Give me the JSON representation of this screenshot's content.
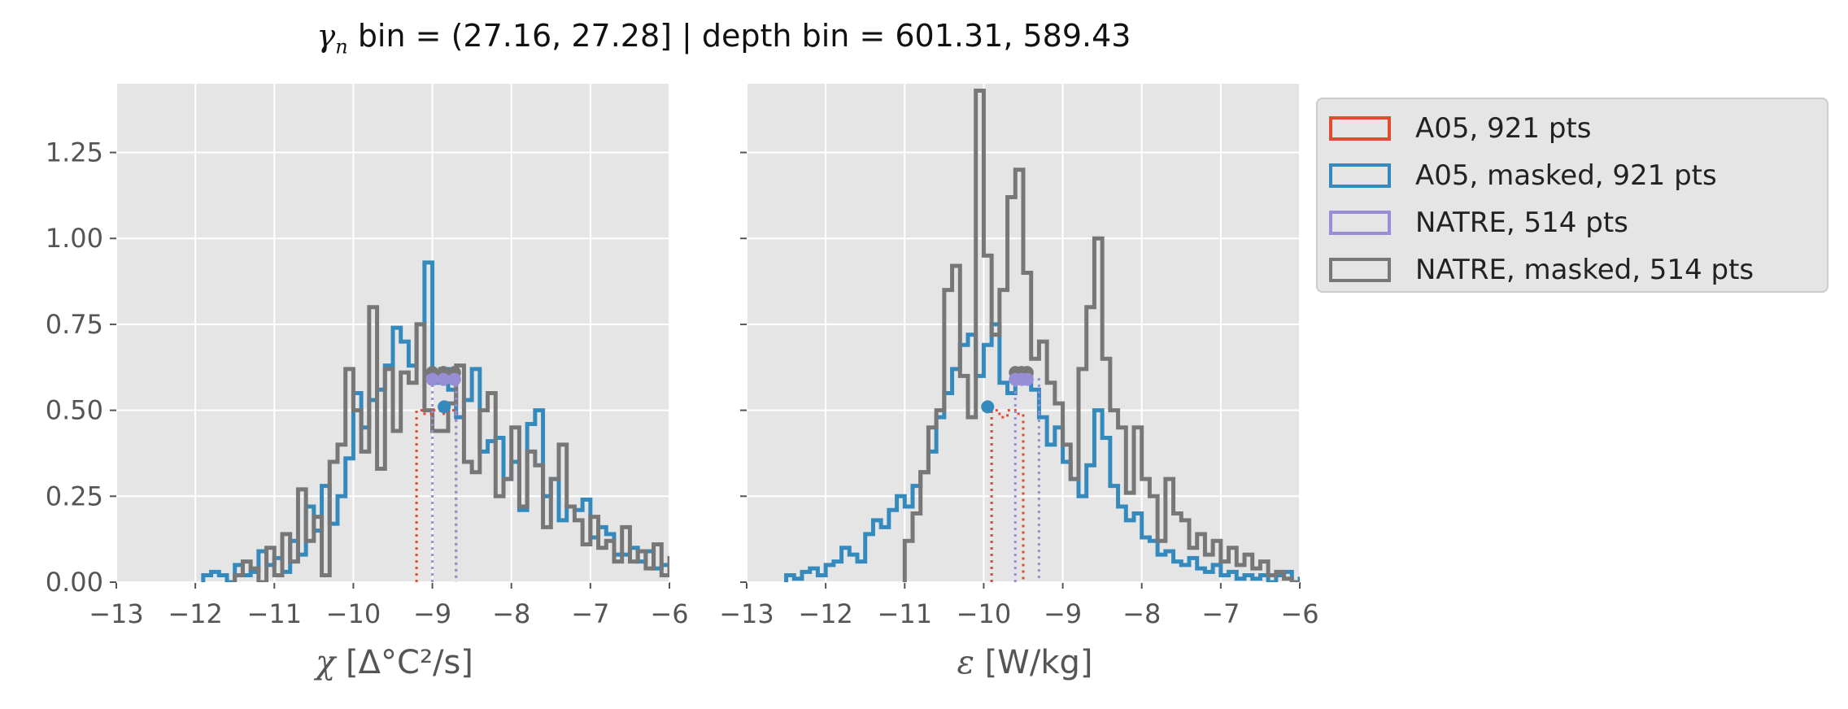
{
  "title": {
    "gamma_symbol": "γ",
    "gamma_subscript": "n",
    "text": " bin = (27.16, 27.28] | depth bin = 601.31, 589.43"
  },
  "legend": [
    {
      "label": "A05, 921 pts",
      "color": "#E24A33"
    },
    {
      "label": "A05, masked,  921 pts",
      "color": "#348ABD"
    },
    {
      "label": "NATRE, 514 pts",
      "color": "#988ED5"
    },
    {
      "label": "NATRE, masked,  514 pts",
      "color": "#777777"
    }
  ],
  "chart_data": [
    {
      "type": "histogram-step",
      "xlabel_symbol": "χ",
      "xlabel_unit": " [Δ°C²/s]",
      "xlim": [
        -13,
        -6
      ],
      "ylim": [
        0,
        1.45
      ],
      "xticks": [
        "−13",
        "−12",
        "−11",
        "−10",
        "−9",
        "−8",
        "−7",
        "−6"
      ],
      "yticks": [
        "0.00",
        "0.25",
        "0.50",
        "0.75",
        "1.00",
        "1.25"
      ],
      "ytick_values": [
        0,
        0.25,
        0.5,
        0.75,
        1.0,
        1.25
      ],
      "grid": true,
      "series": [
        {
          "name": "A05, masked,  921 pts",
          "color": "#348ABD",
          "bin_start": -11.9,
          "bin_width": 0.1,
          "values": [
            0.02,
            0.03,
            0.02,
            0.0,
            0.05,
            0.02,
            0.03,
            0.09,
            0.05,
            0.07,
            0.03,
            0.12,
            0.08,
            0.22,
            0.15,
            0.28,
            0.17,
            0.25,
            0.36,
            0.55,
            0.45,
            0.53,
            0.56,
            0.63,
            0.74,
            0.7,
            0.63,
            0.75,
            0.93,
            0.58,
            0.62,
            0.56,
            0.48,
            0.53,
            0.62,
            0.38,
            0.41,
            0.42,
            0.3,
            0.35,
            0.21,
            0.46,
            0.5,
            0.25,
            0.3,
            0.18,
            0.22,
            0.21,
            0.24,
            0.13,
            0.16,
            0.14,
            0.08,
            0.08,
            0.1,
            0.06,
            0.09,
            0.04,
            0.05,
            0.06,
            0.03,
            0.04,
            0.02,
            0.03,
            0.02,
            0.01,
            0.03,
            0.02,
            0.01,
            0.0,
            0.01,
            0.03,
            0.0
          ]
        },
        {
          "name": "NATRE, masked,  514 pts",
          "color": "#777777",
          "bin_start": -11.5,
          "bin_width": 0.1,
          "values": [
            0.02,
            0.06,
            0.04,
            0.0,
            0.1,
            0.02,
            0.14,
            0.06,
            0.27,
            0.12,
            0.19,
            0.02,
            0.35,
            0.4,
            0.62,
            0.5,
            0.38,
            0.8,
            0.33,
            0.62,
            0.44,
            0.61,
            0.58,
            0.75,
            0.5,
            0.44,
            0.44,
            0.52,
            0.63,
            0.35,
            0.32,
            0.5,
            0.55,
            0.25,
            0.3,
            0.45,
            0.22,
            0.38,
            0.34,
            0.16,
            0.3,
            0.4,
            0.22,
            0.18,
            0.11,
            0.19,
            0.1,
            0.12,
            0.06,
            0.16,
            0.06,
            0.09,
            0.04,
            0.11,
            0.02,
            0.07,
            0.02,
            0.02,
            0.08,
            0.04,
            0.05,
            0.03,
            0.02,
            0.04,
            0.01,
            0.0
          ]
        },
        {
          "name": "A05, 921 pts",
          "color": "#E24A33",
          "bin_start": -9.2,
          "bin_width": 0.1,
          "dotted": true,
          "values": [
            0.5,
            0.49,
            0.5,
            0.49,
            0.5
          ]
        },
        {
          "name": "NATRE, 514 pts",
          "color": "#988ED5",
          "bin_start": -9.0,
          "bin_width": 0.1,
          "dotted": true,
          "values": [
            0.59,
            0.59,
            0.59
          ]
        }
      ],
      "markers": [
        {
          "color": "#777777",
          "x": [
            -9.0,
            -8.86,
            -8.72
          ],
          "y": [
            0.61,
            0.61,
            0.61
          ]
        },
        {
          "color": "#988ED5",
          "x": [
            -9.0,
            -8.86,
            -8.72
          ],
          "y": [
            0.59,
            0.59,
            0.59
          ]
        },
        {
          "color": "#348ABD",
          "x": [
            -8.85
          ],
          "y": [
            0.51
          ]
        }
      ]
    },
    {
      "type": "histogram-step",
      "xlabel_symbol": "ε",
      "xlabel_unit": " [W/kg]",
      "xlim": [
        -13,
        -6
      ],
      "ylim": [
        0,
        1.45
      ],
      "xticks": [
        "−13",
        "−12",
        "−11",
        "−10",
        "−9",
        "−8",
        "−7",
        "−6"
      ],
      "yticks": [
        "",
        "",
        "",
        "",
        "",
        ""
      ],
      "ytick_values": [
        0,
        0.25,
        0.5,
        0.75,
        1.0,
        1.25
      ],
      "grid": true,
      "series": [
        {
          "name": "A05, masked,  921 pts",
          "color": "#348ABD",
          "bin_start": -12.5,
          "bin_width": 0.1,
          "values": [
            0.02,
            0.01,
            0.03,
            0.04,
            0.02,
            0.05,
            0.06,
            0.1,
            0.08,
            0.06,
            0.14,
            0.18,
            0.16,
            0.21,
            0.25,
            0.22,
            0.28,
            0.32,
            0.38,
            0.48,
            0.55,
            0.62,
            0.69,
            0.72,
            0.6,
            0.69,
            0.75,
            0.58,
            0.55,
            0.62,
            0.6,
            0.56,
            0.48,
            0.4,
            0.45,
            0.35,
            0.3,
            0.25,
            0.34,
            0.5,
            0.42,
            0.28,
            0.22,
            0.18,
            0.2,
            0.13,
            0.12,
            0.08,
            0.09,
            0.06,
            0.05,
            0.07,
            0.04,
            0.03,
            0.05,
            0.02,
            0.03,
            0.01,
            0.02,
            0.01,
            0.02,
            0.0,
            0.02,
            0.03,
            0.0,
            0.01,
            0.02,
            0.01
          ]
        },
        {
          "name": "NATRE, masked,  514 pts",
          "color": "#777777",
          "bin_start": -11.0,
          "bin_width": 0.1,
          "values": [
            0.12,
            0.2,
            0.32,
            0.45,
            0.5,
            0.85,
            0.92,
            0.6,
            0.48,
            1.43,
            0.95,
            0.72,
            0.85,
            1.12,
            1.2,
            0.9,
            0.65,
            0.7,
            0.58,
            0.52,
            0.4,
            0.3,
            0.62,
            0.8,
            1.0,
            0.65,
            0.5,
            0.45,
            0.26,
            0.45,
            0.3,
            0.25,
            0.12,
            0.3,
            0.2,
            0.18,
            0.1,
            0.14,
            0.08,
            0.12,
            0.06,
            0.1,
            0.05,
            0.08,
            0.04,
            0.06,
            0.02,
            0.03,
            0.01,
            0.0
          ]
        },
        {
          "name": "A05, 921 pts",
          "color": "#E24A33",
          "bin_start": -9.9,
          "bin_width": 0.1,
          "dotted": true,
          "values": [
            0.5,
            0.48,
            0.5,
            0.49
          ]
        },
        {
          "name": "NATRE, 514 pts",
          "color": "#988ED5",
          "bin_start": -9.6,
          "bin_width": 0.1,
          "dotted": true,
          "values": [
            0.59,
            0.59,
            0.59
          ]
        }
      ],
      "markers": [
        {
          "color": "#777777",
          "x": [
            -9.6,
            -9.52,
            -9.45
          ],
          "y": [
            0.61,
            0.61,
            0.61
          ]
        },
        {
          "color": "#988ED5",
          "x": [
            -9.6,
            -9.52,
            -9.45
          ],
          "y": [
            0.59,
            0.59,
            0.59
          ]
        },
        {
          "color": "#348ABD",
          "x": [
            -9.95
          ],
          "y": [
            0.51
          ]
        }
      ]
    }
  ]
}
